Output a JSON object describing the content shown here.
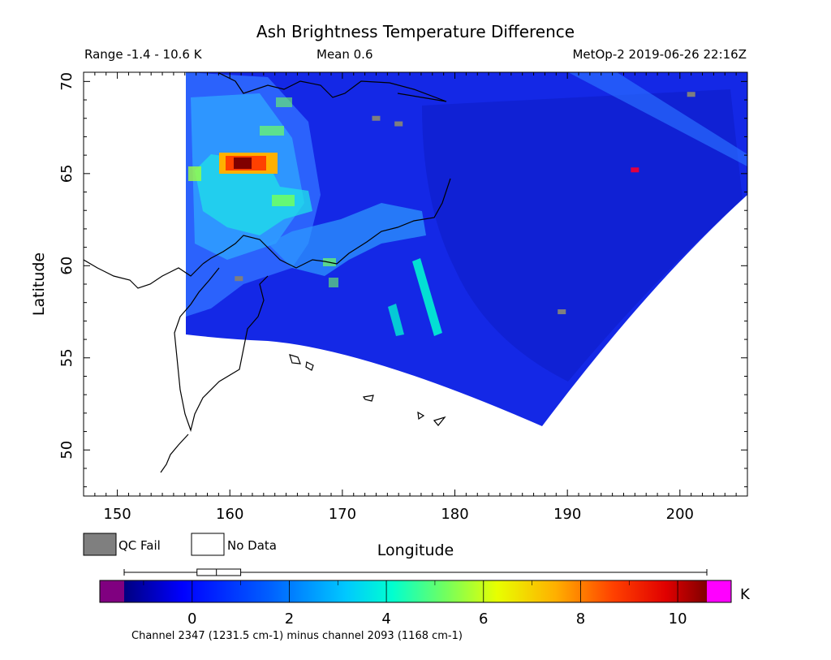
{
  "chart_data": {
    "type": "heatmap",
    "title": "Ash Brightness Temperature Difference",
    "range_label": "Range -1.4 - 10.6 K",
    "mean_label": "Mean 0.6",
    "satellite_label": "MetOp-2 2019-06-26 22:16Z",
    "xlabel": "Longitude",
    "ylabel": "Latitude",
    "xlim": [
      147,
      206
    ],
    "ylim": [
      47.5,
      70.5
    ],
    "x_ticks": [
      "150",
      "160",
      "170",
      "180",
      "190",
      "200"
    ],
    "y_ticks": [
      "50",
      "55",
      "60",
      "65",
      "70"
    ],
    "x_tick_values": [
      150,
      160,
      170,
      180,
      190,
      200
    ],
    "y_tick_values": [
      50,
      55,
      60,
      65,
      70
    ],
    "colorbar": {
      "unit": "K",
      "min": -1.4,
      "max": 10.6,
      "ticks": [
        "0",
        "2",
        "4",
        "6",
        "8",
        "10"
      ],
      "tick_values": [
        0,
        2,
        4,
        6,
        8,
        10
      ],
      "caption": "Channel 2347 (1231.5 cm-1) minus channel 2093 (1168 cm-1)",
      "boxplot": {
        "whisker_low": -1.4,
        "q1": 0.1,
        "median": 0.5,
        "q3": 1.0,
        "whisker_high": 10.6
      }
    },
    "legend": [
      {
        "label": "QC Fail",
        "color": "#7f7f7f"
      },
      {
        "label": "No Data",
        "color": "#ffffff"
      }
    ],
    "colors": {
      "under": "#800080",
      "over": "#ff00ff",
      "scale": [
        "#000080",
        "#0000ff",
        "#0060ff",
        "#00c8ff",
        "#00ffd0",
        "#70ff60",
        "#e8ff00",
        "#ffb000",
        "#ff4000",
        "#e00000",
        "#800000"
      ]
    },
    "features": [
      {
        "name": "high ash signal",
        "lon": 161.8,
        "lat": 65.7,
        "value": 10.6
      },
      {
        "name": "ash plume arc",
        "lon": 162.5,
        "lat": 63.5,
        "value": 4.5
      },
      {
        "name": "elevated band",
        "lon": 170,
        "lat": 60.8,
        "value": 3.5
      },
      {
        "name": "diagonal streak",
        "lon": 178,
        "lat": 59,
        "value": 3.8
      }
    ],
    "qc_fail_points": [
      [
        173,
        68
      ],
      [
        175,
        67.7
      ],
      [
        201,
        69.3
      ],
      [
        160.8,
        59.3
      ],
      [
        189.5,
        57.5
      ]
    ],
    "hot_pixel": {
      "lon": 196,
      "lat": 65.2,
      "value": 9
    }
  }
}
